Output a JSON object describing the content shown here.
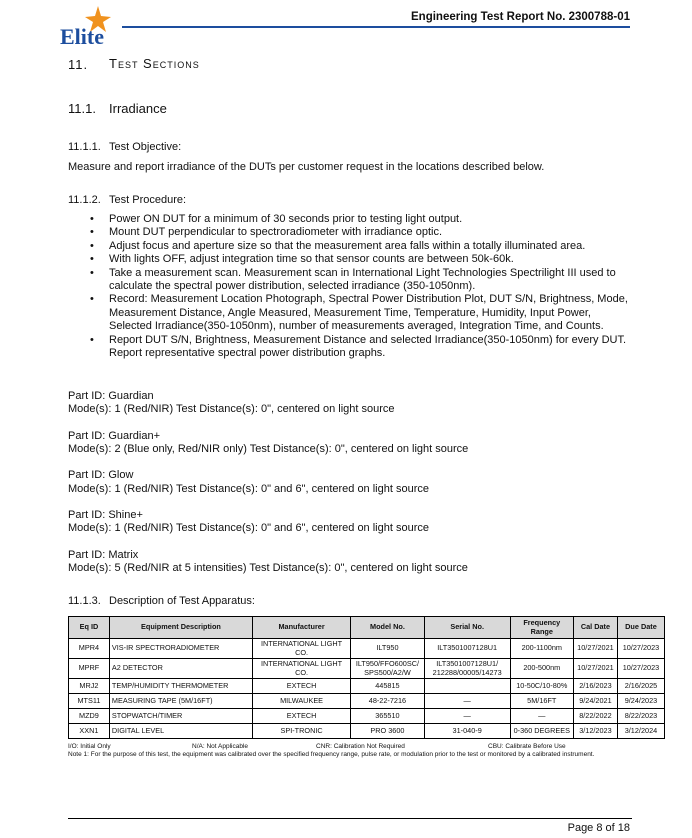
{
  "header": {
    "logo": "Elite",
    "report_title": "Engineering Test Report No. 2300788-01"
  },
  "section": {
    "number": "11.",
    "title": "Test Sections"
  },
  "subsection": {
    "number": "11.1.",
    "title": "Irradiance"
  },
  "objective": {
    "number": "11.1.1.",
    "title": "Test Objective:",
    "text": "Measure and report irradiance of the DUTs per customer request in the locations described below."
  },
  "procedure": {
    "number": "11.1.2.",
    "title": "Test Procedure:",
    "items": [
      "Power ON DUT for a minimum of 30 seconds prior to testing light output.",
      "Mount DUT perpendicular to spectroradiometer with irradiance optic.",
      "Adjust focus and aperture size so that the measurement area falls within a totally illuminated area.",
      "With lights OFF, adjust integration time so that sensor counts are between 50k-60k.",
      "Take a measurement scan. Measurement scan in International Light Technologies Spectrilight III used to calculate the spectral power distribution, selected irradiance (350-1050nm).",
      "Record: Measurement Location Photograph, Spectral Power Distribution Plot, DUT S/N, Brightness, Mode, Measurement Distance, Angle Measured, Measurement Time, Temperature, Humidity, Input Power, Selected Irradiance(350-1050nm), number of measurements averaged, Integration Time, and Counts.",
      "Report DUT S/N, Brightness, Measurement Distance and selected Irradiance(350-1050nm) for every DUT. Report representative spectral power distribution graphs."
    ]
  },
  "parts": [
    {
      "part_id": "Part ID: Guardian",
      "modes": "Mode(s): 1 (Red/NIR) Test Distance(s): 0\", centered on light source"
    },
    {
      "part_id": "Part ID: Guardian+",
      "modes": "Mode(s): 2 (Blue only, Red/NIR only) Test Distance(s): 0\", centered on light source"
    },
    {
      "part_id": "Part ID: Glow",
      "modes": "Mode(s): 1 (Red/NIR) Test Distance(s): 0\" and 6\", centered on light source"
    },
    {
      "part_id": "Part ID: Shine+",
      "modes": "Mode(s): 1 (Red/NIR) Test Distance(s): 0\" and 6\", centered on light source"
    },
    {
      "part_id": "Part ID: Matrix",
      "modes": "Mode(s): 5 (Red/NIR at 5 intensities) Test Distance(s): 0\", centered on light source"
    }
  ],
  "apparatus": {
    "number": "11.1.3.",
    "title": "Description of Test Apparatus:",
    "table": {
      "columns": [
        "Eq ID",
        "Equipment Description",
        "Manufacturer",
        "Model No.",
        "Serial No.",
        "Frequency Range",
        "Cal Date",
        "Due Date"
      ],
      "rows": [
        [
          "MPR4",
          "VIS-IR SPECTRORADIOMETER",
          "INTERNATIONAL LIGHT CO.",
          "ILT950",
          "ILT3501007128U1",
          "200-1100nm",
          "10/27/2021",
          "10/27/2023"
        ],
        [
          "MPRF",
          "A2 DETECTOR",
          "INTERNATIONAL LIGHT CO.",
          "ILT950/FFO600SC/ SPS500/A2/W",
          "ILT3501007128U1/ 212288/00005/14273",
          "200-500nm",
          "10/27/2021",
          "10/27/2023"
        ],
        [
          "MRJ2",
          "TEMP/HUMIDITY THERMOMETER",
          "EXTECH",
          "445815",
          null,
          "10-50C/10-80%",
          "2/16/2023",
          "2/16/2025"
        ],
        [
          "MTS11",
          "MEASURING TAPE (5M/16FT)",
          "MILWAUKEE",
          "48-22-7216",
          "—",
          "5M/16FT",
          "9/24/2021",
          "9/24/2023"
        ],
        [
          "MZD9",
          "STOPWATCH/TIMER",
          "EXTECH",
          "365510",
          "—",
          "—",
          "8/22/2022",
          "8/22/2023"
        ],
        [
          "XXN1",
          "DIGITAL LEVEL",
          "SPI-TRONIC",
          "PRO 3600",
          "31-040-9",
          "0-360 DEGREES",
          "3/12/2023",
          "3/12/2024"
        ]
      ]
    },
    "legend": [
      "I/O: Initial Only",
      "N/A: Not Applicable",
      "CNR: Calibration Not Required",
      "CBU: Calibrate Before Use"
    ],
    "note": "Note 1: For the purpose of this test, the equipment was calibrated over the specified frequency range, pulse rate, or modulation prior to the test or monitored by a calibrated instrument."
  },
  "footer": {
    "page": "Page 8 of 18"
  }
}
